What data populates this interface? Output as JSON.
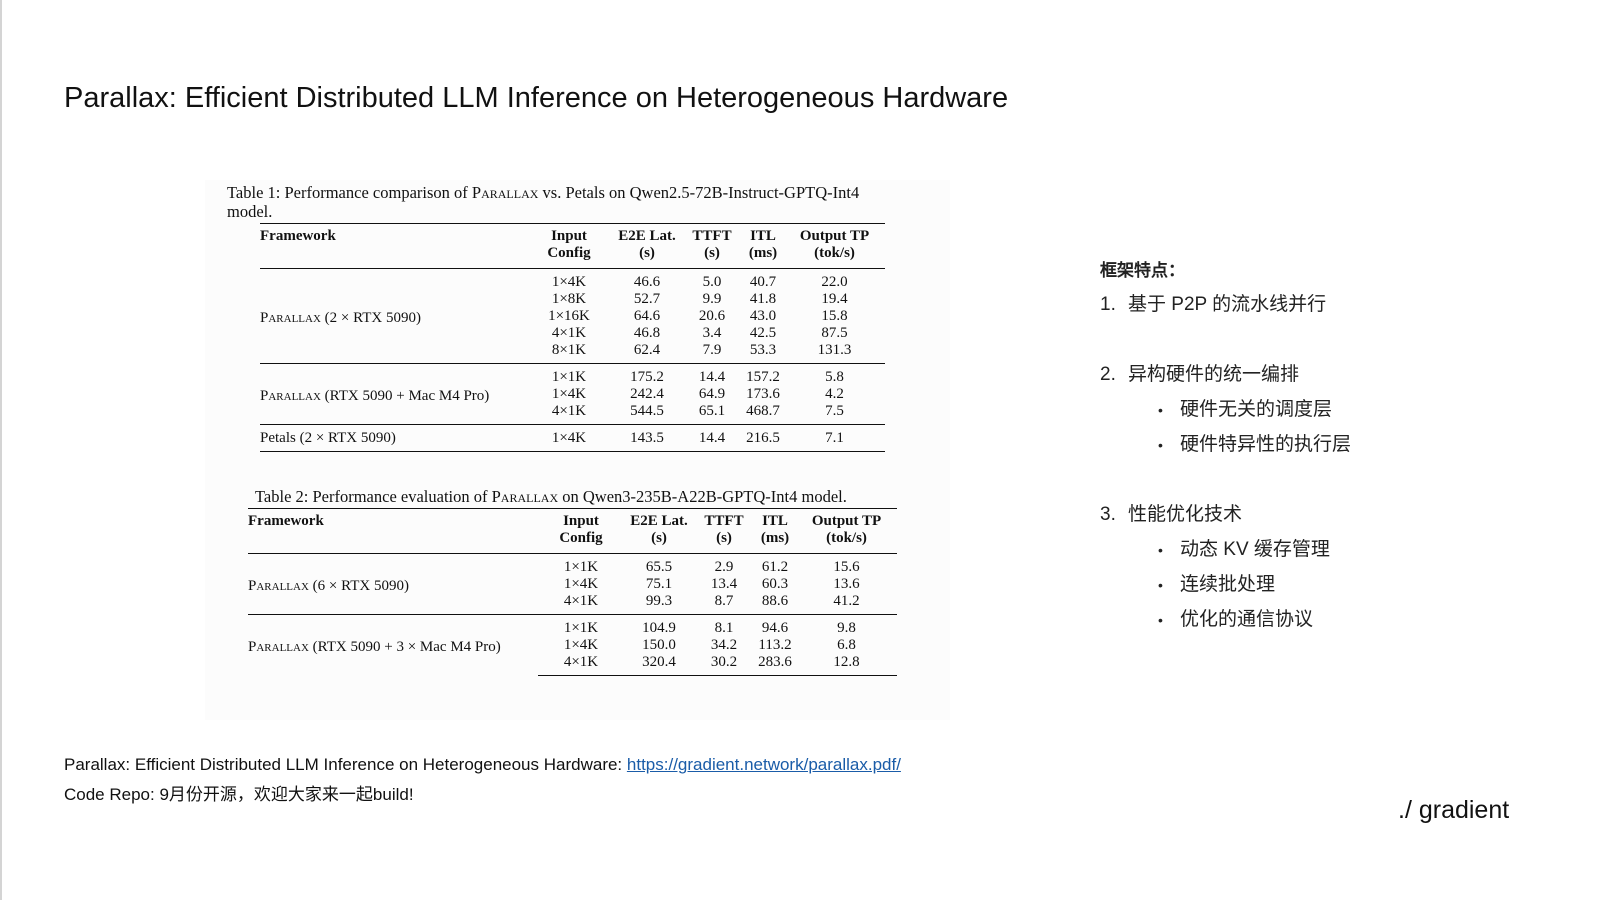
{
  "slide": {
    "title": "Parallax: Efficient Distributed LLM Inference on Heterogeneous Hardware",
    "logo": "./ gradient"
  },
  "table1": {
    "caption_prefix": "Table 1: Performance comparison of ",
    "caption_brand": "Parallax",
    "caption_suffix": " vs. Petals on Qwen2.5-72B-Instruct-GPTQ-Int4",
    "caption_line2": "model.",
    "headers": {
      "framework": "Framework",
      "input_config": "Input Config",
      "e2e": "E2E Lat.",
      "e2e_unit": "(s)",
      "ttft": "TTFT",
      "ttft_unit": "(s)",
      "itl": "ITL",
      "itl_unit": "(ms)",
      "output_tp": "Output TP",
      "output_tp_unit": "(tok/s)"
    },
    "groups": [
      {
        "brand": "Parallax",
        "setup": " (2 × RTX 5090)",
        "rows": [
          [
            "1×4K",
            "46.6",
            "5.0",
            "40.7",
            "22.0"
          ],
          [
            "1×8K",
            "52.7",
            "9.9",
            "41.8",
            "19.4"
          ],
          [
            "1×16K",
            "64.6",
            "20.6",
            "43.0",
            "15.8"
          ],
          [
            "4×1K",
            "46.8",
            "3.4",
            "42.5",
            "87.5"
          ],
          [
            "8×1K",
            "62.4",
            "7.9",
            "53.3",
            "131.3"
          ]
        ]
      },
      {
        "brand": "Parallax",
        "setup": " (RTX 5090 + Mac M4 Pro)",
        "rows": [
          [
            "1×1K",
            "175.2",
            "14.4",
            "157.2",
            "5.8"
          ],
          [
            "1×4K",
            "242.4",
            "64.9",
            "173.6",
            "4.2"
          ],
          [
            "4×1K",
            "544.5",
            "65.1",
            "468.7",
            "7.5"
          ]
        ]
      },
      {
        "brand": "",
        "setup": "Petals (2 × RTX 5090)",
        "rows": [
          [
            "1×4K",
            "143.5",
            "14.4",
            "216.5",
            "7.1"
          ]
        ]
      }
    ]
  },
  "table2": {
    "caption_prefix": "Table 2: Performance evaluation of ",
    "caption_brand": "Parallax",
    "caption_suffix": " on Qwen3-235B-A22B-GPTQ-Int4 model.",
    "headers": {
      "framework": "Framework",
      "input_config": "Input Config",
      "e2e": "E2E Lat.",
      "e2e_unit": "(s)",
      "ttft": "TTFT",
      "ttft_unit": "(s)",
      "itl": "ITL",
      "itl_unit": "(ms)",
      "output_tp": "Output TP",
      "output_tp_unit": "(tok/s)"
    },
    "groups": [
      {
        "brand": "Parallax",
        "setup": " (6 × RTX 5090)",
        "rows": [
          [
            "1×1K",
            "65.5",
            "2.9",
            "61.2",
            "15.6"
          ],
          [
            "1×4K",
            "75.1",
            "13.4",
            "60.3",
            "13.6"
          ],
          [
            "4×1K",
            "99.3",
            "8.7",
            "88.6",
            "41.2"
          ]
        ]
      },
      {
        "brand": "Parallax",
        "setup": " (RTX 5090 + 3 × Mac M4 Pro)",
        "rows": [
          [
            "1×1K",
            "104.9",
            "8.1",
            "94.6",
            "9.8"
          ],
          [
            "1×4K",
            "150.0",
            "34.2",
            "113.2",
            "6.8"
          ],
          [
            "4×1K",
            "320.4",
            "30.2",
            "283.6",
            "12.8"
          ]
        ]
      }
    ]
  },
  "features": {
    "heading": "框架特点：",
    "items": [
      {
        "num": "1.",
        "text": "基于 P2P 的流水线并行",
        "subs": []
      },
      {
        "num": "2.",
        "text": "异构硬件的统一编排",
        "subs": [
          "硬件无关的调度层",
          "硬件特异性的执行层"
        ]
      },
      {
        "num": "3.",
        "text": "性能优化技术",
        "subs": [
          "动态 KV 缓存管理",
          "连续批处理",
          "优化的通信协议"
        ]
      }
    ],
    "bullet": "•"
  },
  "footer": {
    "line1_text": "Parallax: Efficient Distributed LLM Inference on Heterogeneous Hardware: ",
    "line1_link": "https://gradient.network/parallax.pdf/",
    "line2": "Code Repo: 9月份开源，欢迎大家来一起build!"
  }
}
